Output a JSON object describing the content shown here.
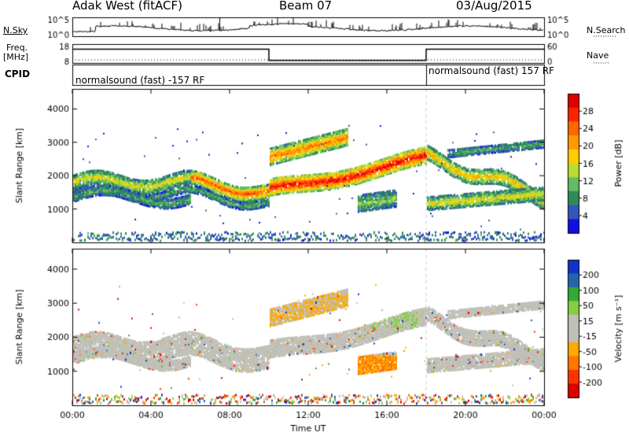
{
  "header": {
    "station": "Adak West (fitACF)",
    "beam": "Beam 07",
    "date": "03/Aug/2015"
  },
  "side_labels": {
    "nsky": "N.Sky",
    "nsearch": "N.Search",
    "freq": "Freq.",
    "freq_unit": "[MHz]",
    "nave": "Nave",
    "cpid": "CPID"
  },
  "cpid_segments": [
    "normalsound (fast) -157 RF",
    "normalsound (fast) 157 RF"
  ],
  "colors": {
    "power": [
      "#1010e0",
      "#3355bb",
      "#2e8b57",
      "#66bb66",
      "#bbdd33",
      "#ffcc00",
      "#ff9900",
      "#ff6600",
      "#ff2200",
      "#dd0000"
    ],
    "velocity": [
      "#dd0000",
      "#ff3300",
      "#ff7700",
      "#ffaa00",
      "#c0c0b8",
      "#c0c0b8",
      "#88cc44",
      "#33aa33",
      "#2266aa",
      "#1133cc"
    ],
    "ground": "#aaaaaa"
  },
  "chart_data": [
    {
      "type": "line",
      "panel": "noise",
      "left_label": "N.Sky",
      "right_label": "N.Search",
      "left_ticks": [
        "10^5",
        "10^0"
      ],
      "right_ticks": [
        "10^5",
        "10^0"
      ]
    },
    {
      "type": "line",
      "panel": "frequency-nave",
      "left_label": "Freq. [MHz]",
      "right_label": "Nave",
      "left_ticks": [
        "18",
        "8"
      ],
      "right_ticks": [
        "60",
        "0"
      ],
      "freq_segments": [
        {
          "start": "00:00",
          "end": "10:00",
          "freq_mhz": 17
        },
        {
          "start": "10:00",
          "end": "18:00",
          "freq_mhz": 11
        },
        {
          "start": "18:00",
          "end": "24:00",
          "freq_mhz": 17
        }
      ]
    },
    {
      "type": "heatmap",
      "panel": "power",
      "ylabel": "Slant Range [km]",
      "yticks": [
        1000,
        2000,
        3000,
        4000
      ],
      "ylim": [
        0,
        4600
      ],
      "xlim": [
        "00:00",
        "24:00"
      ],
      "colorbar_label": "Power [dB]",
      "colorbar_ticks": [
        4,
        8,
        12,
        16,
        20,
        24,
        28
      ],
      "clim": [
        0,
        32
      ]
    },
    {
      "type": "heatmap",
      "panel": "velocity",
      "ylabel": "Slant Range [km]",
      "yticks": [
        1000,
        2000,
        3000,
        4000
      ],
      "ylim": [
        0,
        4600
      ],
      "xlim": [
        "00:00",
        "24:00"
      ],
      "colorbar_label": "Velocity [m s⁻¹]",
      "colorbar_ticks": [
        -200,
        -100,
        -50,
        -15,
        15,
        50,
        100,
        200
      ],
      "xticks": [
        "00:00",
        "04:00",
        "08:00",
        "12:00",
        "16:00",
        "20:00",
        "00:00"
      ],
      "xlabel": "Time UT"
    }
  ]
}
